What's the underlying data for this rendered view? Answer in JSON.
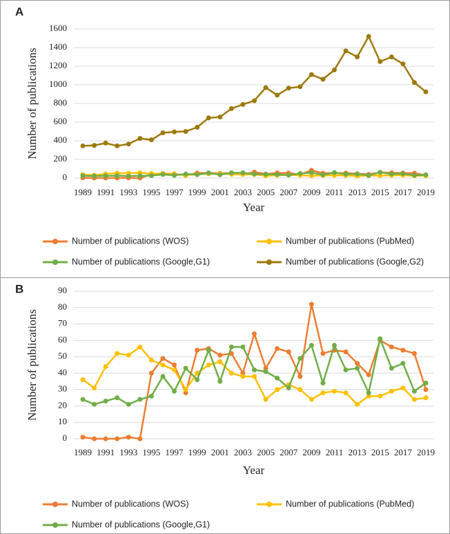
{
  "chart_data": [
    {
      "type": "line",
      "panel_label": "A",
      "y_label": "Number of publications",
      "x_label": "Year",
      "categories": [
        "1989",
        null,
        "1991",
        null,
        "1993",
        null,
        "1995",
        null,
        "1997",
        null,
        "1999",
        null,
        "2001",
        null,
        "2003",
        null,
        "2005",
        null,
        "2007",
        null,
        "2009",
        null,
        "2011",
        null,
        "2013",
        null,
        "2015",
        null,
        "2017",
        null,
        "2019"
      ],
      "ylim": [
        0,
        1600
      ],
      "yticks": [
        0,
        200,
        400,
        600,
        800,
        1000,
        1200,
        1400,
        1600
      ],
      "grid": true,
      "series": [
        {
          "name": "Number of publications (WOS)",
          "color": "#ed7d31",
          "values": [
            1,
            0,
            0,
            0,
            1,
            0,
            40,
            49,
            45,
            28,
            54,
            55,
            51,
            52,
            40,
            64,
            43,
            55,
            53,
            38,
            82,
            52,
            54,
            53,
            46,
            39,
            60,
            56,
            54,
            52,
            30
          ]
        },
        {
          "name": "Number of publications (PubMed)",
          "color": "#ffc000",
          "values": [
            36,
            31,
            44,
            52,
            51,
            56,
            48,
            45,
            42,
            30,
            40,
            45,
            47,
            40,
            38,
            38,
            24,
            30,
            33,
            30,
            24,
            28,
            29,
            28,
            21,
            26,
            26,
            29,
            31,
            24,
            25
          ]
        },
        {
          "name": "Number of publications (Google,G1)",
          "color": "#70ad47",
          "values": [
            24,
            21,
            23,
            25,
            21,
            24,
            26,
            38,
            29,
            43,
            36,
            54,
            35,
            56,
            56,
            42,
            41,
            37,
            31,
            49,
            57,
            34,
            57,
            42,
            43,
            28,
            61,
            43,
            46,
            29,
            34
          ]
        },
        {
          "name": "Number of publications (Google,G2)",
          "color": "#9c7a0b",
          "values": [
            345,
            350,
            375,
            345,
            365,
            425,
            410,
            485,
            495,
            500,
            545,
            645,
            655,
            745,
            790,
            830,
            970,
            890,
            965,
            980,
            1110,
            1060,
            1160,
            1365,
            1300,
            1520,
            1250,
            1300,
            1225,
            1025,
            925
          ]
        }
      ]
    },
    {
      "type": "line",
      "panel_label": "B",
      "y_label": "Number of publications",
      "x_label": "Year",
      "categories": [
        "1989",
        null,
        "1991",
        null,
        "1993",
        null,
        "1995",
        null,
        "1997",
        null,
        "1999",
        null,
        "2001",
        null,
        "2003",
        null,
        "2005",
        null,
        "2007",
        null,
        "2009",
        null,
        "2011",
        null,
        "2013",
        null,
        "2015",
        null,
        "2017",
        null,
        "2019"
      ],
      "ylim": [
        0,
        90
      ],
      "yticks": [
        0,
        10,
        20,
        30,
        40,
        50,
        60,
        70,
        80,
        90
      ],
      "grid": true,
      "series": [
        {
          "name": "Number of publications (WOS)",
          "color": "#ed7d31",
          "values": [
            1,
            0,
            0,
            0,
            1,
            0,
            40,
            49,
            45,
            28,
            54,
            55,
            51,
            52,
            40,
            64,
            43,
            55,
            53,
            38,
            82,
            52,
            54,
            53,
            46,
            39,
            60,
            56,
            54,
            52,
            30
          ]
        },
        {
          "name": "Number of publications (PubMed)",
          "color": "#ffc000",
          "values": [
            36,
            31,
            44,
            52,
            51,
            56,
            48,
            45,
            42,
            30,
            40,
            45,
            47,
            40,
            38,
            38,
            24,
            30,
            33,
            30,
            24,
            28,
            29,
            28,
            21,
            26,
            26,
            29,
            31,
            24,
            25
          ]
        },
        {
          "name": "Number of publications (Google,G1)",
          "color": "#70ad47",
          "values": [
            24,
            21,
            23,
            25,
            21,
            24,
            26,
            38,
            29,
            43,
            36,
            54,
            35,
            56,
            56,
            42,
            41,
            37,
            31,
            49,
            57,
            34,
            57,
            42,
            43,
            28,
            61,
            43,
            46,
            29,
            34
          ]
        }
      ]
    }
  ]
}
